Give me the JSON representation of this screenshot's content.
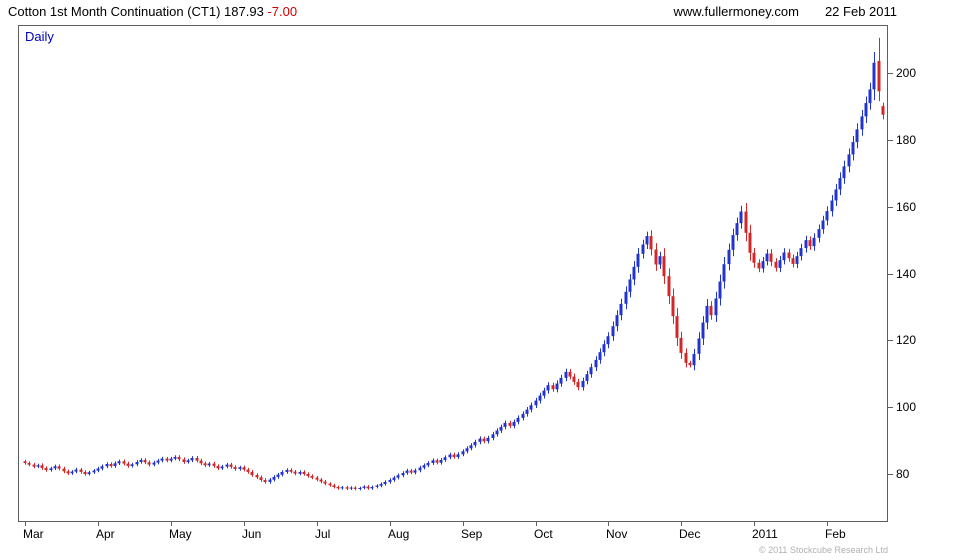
{
  "header": {
    "title": "Cotton 1st Month Continuation (CT1) 187.93",
    "change": "-7.00",
    "site": "www.fullermoney.com",
    "date": "22 Feb 2011"
  },
  "chart": {
    "mode_label": "Daily",
    "copyright": "© 2011 Stockcube Research Ltd"
  },
  "colors": {
    "up": "#2134cc",
    "down": "#d02828",
    "axis": "#5f5f5f",
    "change_red": "#cc0000",
    "timeframe_blue": "#0000bb"
  },
  "chart_data": {
    "type": "candlestick",
    "title": "Cotton 1st Month Continuation (CT1)",
    "timeframe": "Daily",
    "last_price": 187.93,
    "change": -7.0,
    "x_labels": [
      "Mar",
      "Apr",
      "May",
      "Jun",
      "Jul",
      "Aug",
      "Sep",
      "Oct",
      "Nov",
      "Dec",
      "2011",
      "Feb"
    ],
    "candles_per_month": 17,
    "yticks": [
      80,
      100,
      120,
      140,
      160,
      180,
      200
    ],
    "ylim": [
      66.1,
      214.5
    ],
    "grid": false,
    "legend": false,
    "wick_fraction": 0.004,
    "wick_body_factor": 0.3,
    "closes": [
      83.5,
      83.0,
      82.4,
      82.8,
      82.0,
      81.4,
      81.9,
      82.5,
      81.8,
      81.0,
      80.4,
      80.9,
      81.5,
      80.8,
      80.2,
      80.7,
      81.2,
      81.8,
      82.5,
      83.2,
      82.6,
      83.4,
      84.0,
      83.3,
      82.6,
      83.1,
      83.8,
      84.4,
      83.7,
      83.0,
      83.6,
      84.2,
      84.8,
      84.2,
      84.8,
      85.3,
      84.6,
      83.8,
      84.3,
      85.0,
      84.2,
      83.4,
      82.8,
      83.3,
      82.6,
      81.9,
      82.4,
      83.0,
      82.3,
      81.7,
      82.2,
      81.5,
      80.8,
      79.9,
      79.2,
      78.4,
      77.8,
      78.5,
      79.3,
      80.0,
      80.8,
      81.4,
      80.9,
      80.3,
      80.8,
      80.2,
      79.6,
      79.1,
      78.5,
      77.9,
      77.3,
      76.8,
      76.3,
      75.9,
      76.2,
      75.8,
      76.1,
      75.7,
      76.0,
      76.4,
      75.9,
      76.3,
      76.7,
      77.2,
      77.8,
      78.4,
      79.1,
      79.8,
      80.5,
      81.2,
      80.6,
      81.3,
      82.1,
      82.8,
      83.5,
      84.3,
      83.6,
      84.4,
      85.2,
      86.0,
      85.3,
      86.1,
      87.0,
      87.9,
      88.8,
      89.8,
      90.8,
      90.0,
      91.0,
      92.1,
      93.2,
      94.3,
      95.5,
      94.6,
      95.8,
      97.0,
      98.2,
      99.5,
      100.8,
      102.2,
      103.7,
      105.2,
      106.8,
      105.6,
      107.3,
      109.0,
      110.8,
      109.4,
      107.8,
      106.2,
      108.1,
      110.1,
      112.2,
      114.4,
      116.7,
      119.1,
      121.5,
      124.5,
      127.8,
      131.2,
      134.8,
      138.5,
      142.3,
      146.2,
      149.0,
      151.5,
      147.5,
      143.0,
      145.5,
      139.5,
      133.5,
      127.5,
      121.0,
      116.5,
      113.5,
      112.8,
      116.2,
      120.8,
      125.6,
      130.6,
      127.8,
      132.8,
      137.9,
      143.1,
      147.4,
      151.8,
      155.4,
      158.9,
      152.5,
      146.5,
      143.5,
      141.8,
      144.0,
      146.3,
      143.8,
      142.0,
      144.3,
      146.6,
      144.9,
      143.2,
      145.5,
      147.9,
      150.3,
      148.5,
      151.0,
      153.6,
      156.2,
      159.0,
      162.2,
      165.5,
      168.9,
      172.4,
      176.0,
      179.7,
      183.5,
      187.4,
      191.4,
      195.5,
      203.5,
      194.93,
      187.93
    ],
    "ohlc_overrides": {
      "199": [
        204.0,
        211.0,
        192.0,
        194.93
      ],
      "200": [
        190.5,
        191.5,
        186.5,
        187.93
      ]
    }
  }
}
